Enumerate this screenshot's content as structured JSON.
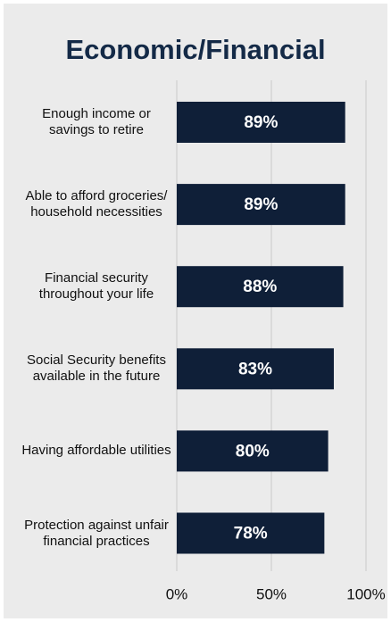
{
  "chart_data": {
    "type": "barh",
    "title": "Economic/Financial",
    "categories": [
      "Enough income or savings to retire",
      "Able to afford groceries/ household necessities",
      "Financial security throughout your life",
      "Social Security benefits available in the future",
      "Having affordable utilities",
      "Protection against unfair financial practices"
    ],
    "values": [
      89,
      89,
      88,
      83,
      80,
      78
    ],
    "value_labels": [
      "89%",
      "89%",
      "88%",
      "83%",
      "80%",
      "78%"
    ],
    "color": "#0f1f38",
    "xlim": [
      0,
      100
    ],
    "xticks": [
      {
        "value": 0,
        "label": "0%"
      },
      {
        "value": 50,
        "label": "50%"
      },
      {
        "value": 100,
        "label": "100%"
      }
    ],
    "grid": true
  }
}
